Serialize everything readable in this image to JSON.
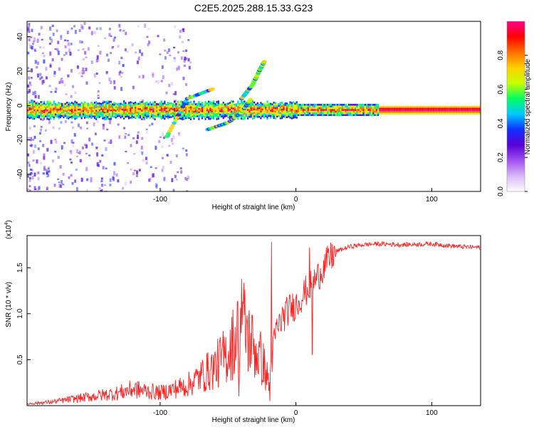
{
  "figure_title": "C2E5.2025.288.15.33.G23",
  "chart_data": [
    {
      "type": "heatmap",
      "name": "spectrogram",
      "xlabel": "Height of straight line (km)",
      "ylabel": "Frequency (Hz)",
      "xlim": [
        -198,
        136
      ],
      "ylim": [
        -50,
        49
      ],
      "x_ticks": [
        -100,
        0,
        100
      ],
      "x_tick_labels": [
        "-100",
        "0",
        "100"
      ],
      "y_ticks": [
        -40,
        -20,
        0,
        20,
        40
      ],
      "y_tick_labels": [
        "-40",
        "-20",
        "0",
        "20",
        "40"
      ],
      "colorbar": {
        "label": "Normalized spectral amplitude",
        "range": [
          0,
          1
        ],
        "ticks": [
          0.0,
          0.2,
          0.4,
          0.6,
          0.8
        ],
        "tick_labels": [
          "0.0",
          "0.2",
          "0.4",
          "0.6",
          "0.8"
        ],
        "colors": [
          "#ffffff",
          "#d8b8f8",
          "#a050f0",
          "#5a00d8",
          "#1030ff",
          "#00c8ff",
          "#00ff60",
          "#c8ff00",
          "#ffd000",
          "#ff7000",
          "#ff0000",
          "#ff0090"
        ]
      },
      "main_band_frequency_hz": -2,
      "features": [
        {
          "name": "main-band",
          "x_range": [
            -198,
            136
          ],
          "frequency_hz": -2
        },
        {
          "name": "rising-arc-upper",
          "x": [
            -40,
            -32,
            -27,
            -23
          ],
          "frequency_hz": [
            4,
            12,
            20,
            26
          ]
        },
        {
          "name": "rising-arc-lower",
          "x": [
            -65,
            -50,
            -40,
            -33
          ],
          "frequency_hz": [
            -14,
            -10,
            -4,
            4
          ]
        },
        {
          "name": "branch-near-90km",
          "x": [
            -95,
            -80,
            -60
          ],
          "frequency_hz": [
            -18,
            4,
            10
          ]
        }
      ]
    },
    {
      "type": "line",
      "name": "snr",
      "xlabel": "Height of straight line (km)",
      "ylabel": "SNR (10 * v/v)",
      "multiplier_label": "(x10",
      "multiplier_exponent": "4",
      "multiplier_suffix": ")",
      "xlim": [
        -198,
        136
      ],
      "ylim": [
        0,
        1.85
      ],
      "x_ticks": [
        -100,
        0,
        100
      ],
      "x_tick_labels": [
        "-100",
        "0",
        "100"
      ],
      "y_ticks": [
        0.5,
        1.0,
        1.5
      ],
      "y_tick_labels": [
        "0.5",
        "1.0",
        "1.5"
      ],
      "line_color": "#ff2020",
      "x": [
        -198,
        -180,
        -165,
        -150,
        -140,
        -130,
        -120,
        -110,
        -100,
        -90,
        -80,
        -70,
        -60,
        -50,
        -45,
        -40,
        -35,
        -30,
        -25,
        -20,
        -15,
        -10,
        -5,
        0,
        5,
        10,
        15,
        20,
        25,
        30,
        40,
        50,
        60,
        80,
        100,
        120,
        136
      ],
      "y": [
        0.02,
        0.04,
        0.07,
        0.1,
        0.12,
        0.14,
        0.18,
        0.16,
        0.14,
        0.18,
        0.22,
        0.32,
        0.42,
        0.58,
        0.72,
        0.95,
        0.75,
        0.6,
        0.5,
        0.25,
        0.8,
        0.95,
        1.05,
        1.1,
        1.2,
        1.3,
        1.38,
        1.5,
        1.6,
        1.68,
        1.73,
        1.75,
        1.76,
        1.75,
        1.76,
        1.73,
        1.72
      ],
      "spikes": [
        {
          "x": -18,
          "y": 1.78
        },
        {
          "x": -19,
          "y": 0.05
        },
        {
          "x": 12,
          "y": 0.55
        },
        {
          "x": 10,
          "y": 1.72
        },
        {
          "x": -40,
          "y": 1.38
        },
        {
          "x": -42,
          "y": 0.1
        }
      ]
    }
  ]
}
